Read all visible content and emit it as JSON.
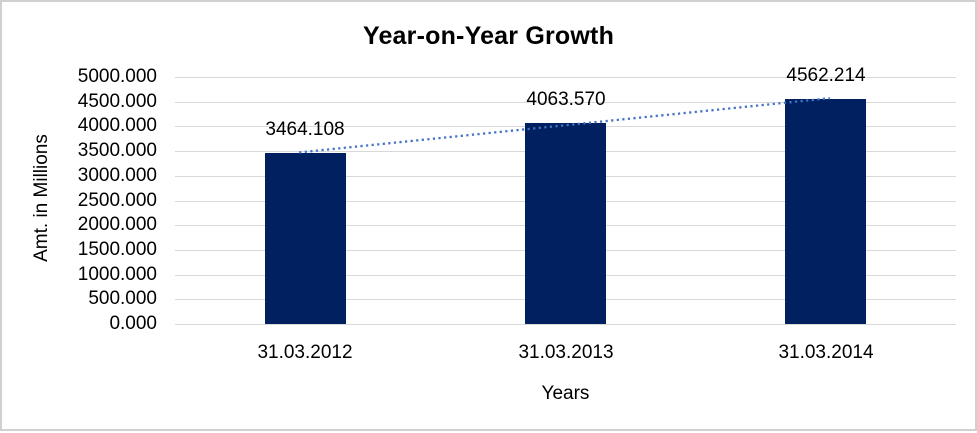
{
  "chart_data": {
    "type": "bar",
    "title": "Year-on-Year Growth",
    "xlabel": "Years",
    "ylabel": "Amt. in Millions",
    "categories": [
      "31.03.2012",
      "31.03.2013",
      "31.03.2014"
    ],
    "values": [
      3464.108,
      4063.57,
      4562.214
    ],
    "data_labels": [
      "3464.108",
      "4063.570",
      "4562.214"
    ],
    "ylim": [
      0,
      5000
    ],
    "ytick_step": 500,
    "ytick_labels": [
      "5000.000",
      "4500.000",
      "4000.000",
      "3500.000",
      "3000.000",
      "2500.000",
      "2000.000",
      "1500.000",
      "1000.000",
      "500.000",
      "0.000"
    ],
    "grid": true,
    "legend": "none",
    "trendline": {
      "type": "linear",
      "style": "dotted"
    },
    "colors": {
      "bar": "#002060",
      "trendline": "#4472c4",
      "gridline": "#d9d9d9",
      "text": "#000000",
      "background": "#ffffff",
      "frame_border": "#d0d0d0"
    }
  }
}
